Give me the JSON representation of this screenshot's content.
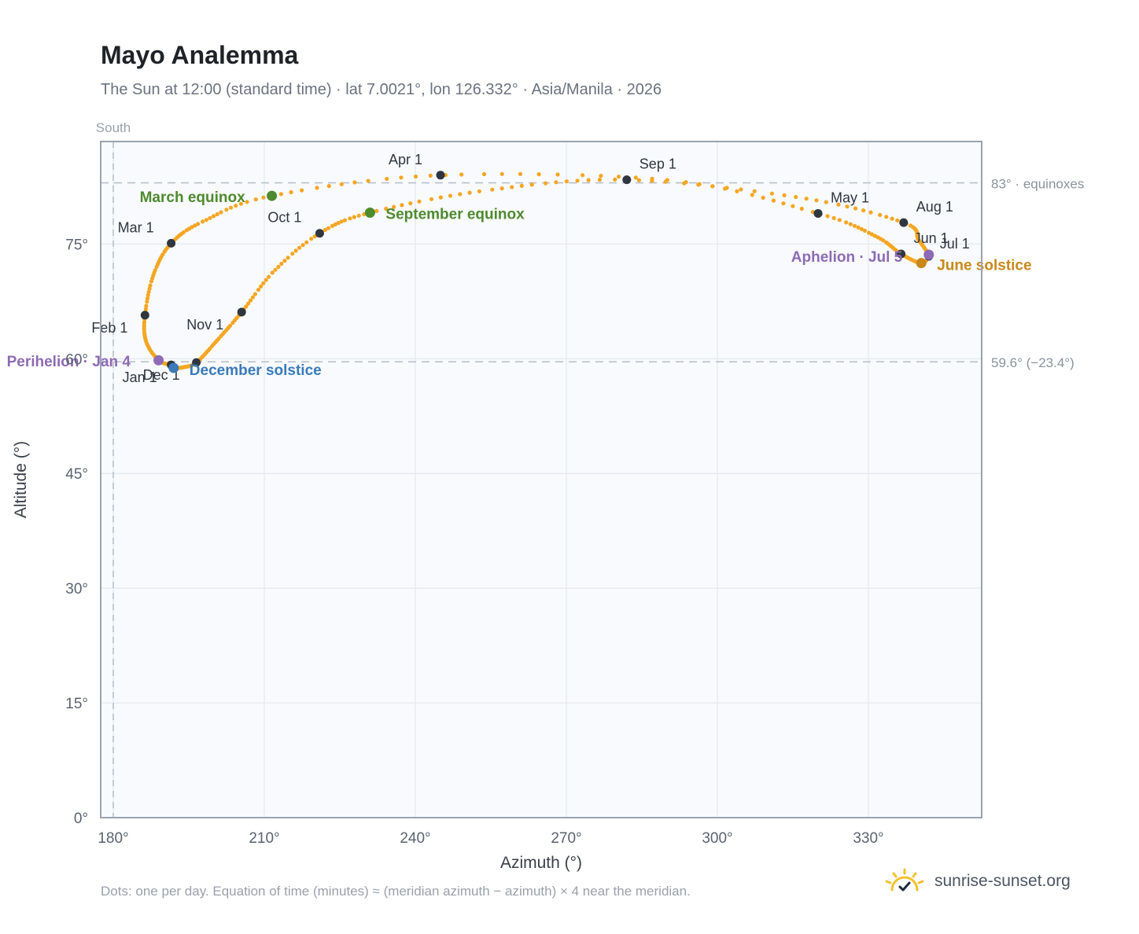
{
  "title": "Mayo Analemma",
  "subtitle": "The Sun at 12:00 (standard time) · lat 7.0021°, lon 126.332° · Asia/Manila · 2026",
  "footnote": "Dots: one per day. Equation of time (minutes) ≈ (meridian azimuth − azimuth) × 4 near the meridian.",
  "brand": {
    "name": "sunrise-sunset.org",
    "icon": "sun-logo-icon"
  },
  "colors": {
    "curve": "#f5a623",
    "month_marker": "#2f3640",
    "equinox": "#4e8a2e",
    "december_solstice": "#3a7ab8",
    "june_solstice": "#c8891a",
    "apsis": "#8e6bb4",
    "plot_bg": "#f8fafd",
    "grid": "#e4e8ee",
    "frame": "#9aa3b0",
    "reference_line": "#b9c1cc"
  },
  "chart_data": {
    "type": "scatter",
    "title": "Mayo Analemma",
    "xlabel": "Azimuth (°)",
    "ylabel": "Altitude (°)",
    "xlim": [
      177.5,
      352.5
    ],
    "ylim": [
      0,
      88.4
    ],
    "x_ticks": [
      180,
      210,
      240,
      270,
      300,
      330
    ],
    "x_tick_labels": [
      "180°",
      "210°",
      "240°",
      "270°",
      "300°",
      "330°"
    ],
    "y_ticks": [
      0,
      15,
      30,
      45,
      60,
      75
    ],
    "y_tick_labels": [
      "0°",
      "15°",
      "30°",
      "45°",
      "60°",
      "75°"
    ],
    "grid": true,
    "meridian": {
      "azimuth": 180,
      "label": "South"
    },
    "reference_lines": [
      {
        "altitude": 83.0,
        "label": "83° · equinoxes"
      },
      {
        "altitude": 59.6,
        "label": "59.6° (−23.4°)"
      }
    ],
    "path_keypoints": [
      {
        "date": "Jan 1",
        "az": 191.5,
        "alt": 59.2
      },
      {
        "date": "Jan 4",
        "az": 189.0,
        "alt": 59.8
      },
      {
        "date": "Jan 15",
        "az": 186.5,
        "alt": 62.3
      },
      {
        "date": "Feb 1",
        "az": 186.3,
        "alt": 65.7
      },
      {
        "date": "Feb 15",
        "az": 188.0,
        "alt": 71.0
      },
      {
        "date": "Mar 1",
        "az": 191.5,
        "alt": 75.1
      },
      {
        "date": "Mar 10",
        "az": 198.0,
        "alt": 78.0
      },
      {
        "date": "Mar 20",
        "az": 211.5,
        "alt": 81.3
      },
      {
        "date": "Apr 1",
        "az": 245.0,
        "alt": 84.0
      },
      {
        "date": "Apr 15",
        "az": 291.0,
        "alt": 83.3
      },
      {
        "date": "May 1",
        "az": 320.0,
        "alt": 79.0
      },
      {
        "date": "May 15",
        "az": 331.5,
        "alt": 76.0
      },
      {
        "date": "Jun 1",
        "az": 336.5,
        "alt": 73.7
      },
      {
        "date": "Jun 21",
        "az": 340.5,
        "alt": 72.5
      },
      {
        "date": "Jul 1",
        "az": 342.0,
        "alt": 73.4
      },
      {
        "date": "Jul 5",
        "az": 342.0,
        "alt": 73.6
      },
      {
        "date": "Jul 15",
        "az": 340.0,
        "alt": 75.5
      },
      {
        "date": "Aug 1",
        "az": 337.0,
        "alt": 77.8
      },
      {
        "date": "Aug 15",
        "az": 317.0,
        "alt": 81.0
      },
      {
        "date": "Sep 1",
        "az": 282.0,
        "alt": 83.4
      },
      {
        "date": "Sep 10",
        "az": 254.0,
        "alt": 82.0
      },
      {
        "date": "Sep 22",
        "az": 231.0,
        "alt": 79.1
      },
      {
        "date": "Oct 1",
        "az": 221.0,
        "alt": 76.4
      },
      {
        "date": "Oct 15",
        "az": 212.0,
        "alt": 71.5
      },
      {
        "date": "Nov 1",
        "az": 205.5,
        "alt": 66.1
      },
      {
        "date": "Nov 15",
        "az": 200.5,
        "alt": 62.3
      },
      {
        "date": "Dec 1",
        "az": 196.5,
        "alt": 59.5
      },
      {
        "date": "Dec 10",
        "az": 194.0,
        "alt": 58.9
      },
      {
        "date": "Dec 21",
        "az": 192.0,
        "alt": 58.8
      },
      {
        "date": "Dec 31",
        "az": 191.5,
        "alt": 59.2
      }
    ],
    "month_markers": [
      {
        "label": "Jan 1",
        "az": 191.5,
        "alt": 59.2
      },
      {
        "label": "Feb 1",
        "az": 186.3,
        "alt": 65.7
      },
      {
        "label": "Mar 1",
        "az": 191.5,
        "alt": 75.1
      },
      {
        "label": "Apr 1",
        "az": 245.0,
        "alt": 84.0
      },
      {
        "label": "May 1",
        "az": 320.0,
        "alt": 79.0
      },
      {
        "label": "Jun 1",
        "az": 336.5,
        "alt": 73.7
      },
      {
        "label": "Jul 1",
        "az": 342.0,
        "alt": 73.4
      },
      {
        "label": "Aug 1",
        "az": 337.0,
        "alt": 77.8
      },
      {
        "label": "Sep 1",
        "az": 282.0,
        "alt": 83.4
      },
      {
        "label": "Oct 1",
        "az": 221.0,
        "alt": 76.4
      },
      {
        "label": "Nov 1",
        "az": 205.5,
        "alt": 66.1
      },
      {
        "label": "Dec 1",
        "az": 196.5,
        "alt": 59.5
      }
    ],
    "events": [
      {
        "label": "March equinox",
        "az": 211.5,
        "alt": 81.3,
        "color_key": "equinox"
      },
      {
        "label": "September equinox",
        "az": 231.0,
        "alt": 79.1,
        "color_key": "equinox"
      },
      {
        "label": "June solstice",
        "az": 340.5,
        "alt": 72.5,
        "color_key": "june_solstice"
      },
      {
        "label": "December solstice",
        "az": 192.0,
        "alt": 58.8,
        "color_key": "december_solstice"
      },
      {
        "label": "Perihelion · Jan 4",
        "az": 189.0,
        "alt": 59.8,
        "color_key": "apsis"
      },
      {
        "label": "Aphelion · Jul 5",
        "az": 342.0,
        "alt": 73.6,
        "color_key": "apsis"
      }
    ]
  }
}
